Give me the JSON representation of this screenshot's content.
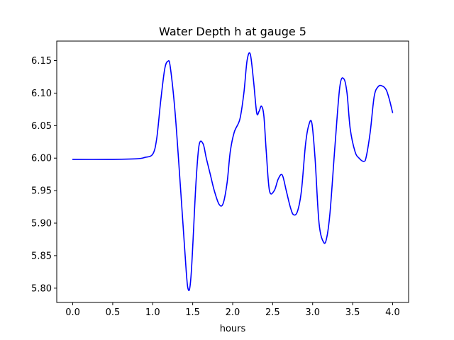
{
  "chart_data": {
    "type": "line",
    "title": "Water Depth h at gauge 5",
    "xlabel": "hours",
    "ylabel": "",
    "xlim": [
      -0.2,
      4.2
    ],
    "ylim": [
      5.778,
      6.18
    ],
    "x_ticks": [
      0.0,
      0.5,
      1.0,
      1.5,
      2.0,
      2.5,
      3.0,
      3.5,
      4.0
    ],
    "x_tick_labels": [
      "0.0",
      "0.5",
      "1.0",
      "1.5",
      "2.0",
      "2.5",
      "3.0",
      "3.5",
      "4.0"
    ],
    "y_ticks": [
      5.8,
      5.85,
      5.9,
      5.95,
      6.0,
      6.05,
      6.1,
      6.15
    ],
    "y_tick_labels": [
      "5.80",
      "5.85",
      "5.90",
      "5.95",
      "6.00",
      "6.05",
      "6.10",
      "6.15"
    ],
    "grid": false,
    "line_color": "#0000ff",
    "series": [
      {
        "x": [
          0.0,
          0.44,
          0.8,
          0.9,
          1.0,
          1.05,
          1.1,
          1.15,
          1.19,
          1.22,
          1.28,
          1.35,
          1.4,
          1.44,
          1.48,
          1.54,
          1.58,
          1.63,
          1.67,
          1.72,
          1.77,
          1.83,
          1.88,
          1.93,
          1.97,
          2.02,
          2.09,
          2.14,
          2.18,
          2.22,
          2.26,
          2.3,
          2.33,
          2.36,
          2.39,
          2.42,
          2.46,
          2.52,
          2.57,
          2.62,
          2.67,
          2.72,
          2.76,
          2.81,
          2.86,
          2.91,
          2.95,
          2.99,
          3.03,
          3.08,
          3.14,
          3.18,
          3.22,
          3.28,
          3.34,
          3.39,
          3.43,
          3.47,
          3.53,
          3.58,
          3.64,
          3.67,
          3.72,
          3.77,
          3.82,
          3.87,
          3.92,
          3.96,
          4.0
        ],
        "y": [
          5.998,
          5.998,
          5.999,
          6.001,
          6.006,
          6.03,
          6.088,
          6.137,
          6.149,
          6.14,
          6.07,
          5.95,
          5.86,
          5.8,
          5.82,
          5.96,
          6.02,
          6.022,
          6.0,
          5.975,
          5.95,
          5.929,
          5.93,
          5.962,
          6.01,
          6.04,
          6.06,
          6.1,
          6.15,
          6.16,
          6.12,
          6.07,
          6.072,
          6.08,
          6.065,
          6.01,
          5.95,
          5.95,
          5.968,
          5.974,
          5.95,
          5.925,
          5.913,
          5.918,
          5.95,
          6.02,
          6.05,
          6.054,
          6.0,
          5.9,
          5.87,
          5.88,
          5.92,
          6.02,
          6.11,
          6.122,
          6.1,
          6.045,
          6.01,
          6.0,
          5.995,
          6.002,
          6.04,
          6.095,
          6.11,
          6.111,
          6.105,
          6.09,
          6.07
        ]
      }
    ]
  }
}
